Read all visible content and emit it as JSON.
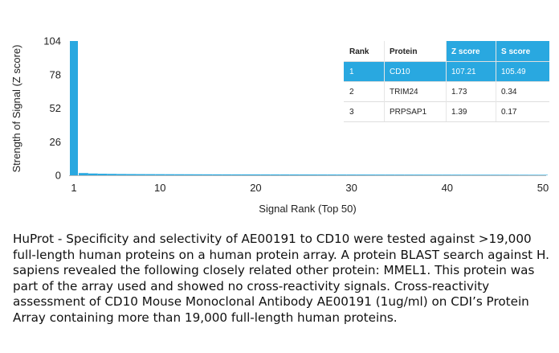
{
  "chart_data": {
    "type": "bar",
    "ylabel": "Strength of Signal (Z score)",
    "xlabel": "Signal Rank (Top 50)",
    "x_ticks": [
      "1",
      "10",
      "20",
      "30",
      "40",
      "50"
    ],
    "y_ticks": [
      "0",
      "26",
      "52",
      "78",
      "104"
    ],
    "ylim": [
      0,
      104
    ],
    "xlim": [
      1,
      50
    ],
    "bar_color": "#29a8e0",
    "highlight_color": "#29a8e0",
    "categories": [
      1,
      2,
      3,
      4,
      5,
      6,
      7,
      8,
      9,
      10,
      11,
      12,
      13,
      14,
      15,
      16,
      17,
      18,
      19,
      20,
      21,
      22,
      23,
      24,
      25,
      26,
      27,
      28,
      29,
      30,
      31,
      32,
      33,
      34,
      35,
      36,
      37,
      38,
      39,
      40,
      41,
      42,
      43,
      44,
      45,
      46,
      47,
      48,
      49,
      50
    ],
    "values": [
      107.21,
      1.73,
      1.39,
      1.2,
      1.1,
      1.0,
      0.95,
      0.9,
      0.88,
      0.85,
      0.82,
      0.8,
      0.78,
      0.76,
      0.74,
      0.72,
      0.7,
      0.69,
      0.68,
      0.67,
      0.66,
      0.65,
      0.64,
      0.63,
      0.62,
      0.61,
      0.6,
      0.59,
      0.58,
      0.57,
      0.56,
      0.55,
      0.54,
      0.53,
      0.52,
      0.51,
      0.5,
      0.49,
      0.48,
      0.47,
      0.46,
      0.45,
      0.44,
      0.43,
      0.42,
      0.41,
      0.4,
      0.39,
      0.38,
      0.37
    ],
    "table": {
      "headers": [
        "Rank",
        "Protein",
        "Z score",
        "S score"
      ],
      "rows": [
        [
          "1",
          "CD10",
          "107.21",
          "105.49"
        ],
        [
          "2",
          "TRIM24",
          "1.73",
          "0.34"
        ],
        [
          "3",
          "PRPSAP1",
          "1.39",
          "0.17"
        ]
      ],
      "highlighted_row": 0,
      "highlighted_columns": [
        2,
        3
      ]
    }
  },
  "caption": "HuProt  -  Specificity and selectivity of AE00191 to CD10 were tested against >19,000 full-length human proteins on a human protein array. A protein BLAST search against H. sapiens revealed the following closely related other protein: MMEL1. This protein was part of the array used and showed no cross-reactivity signals. Cross-reactivity assessment of CD10 Mouse Monoclonal Antibody AE00191 (1ug/ml) on CDI’s Protein Array containing more than 19,000 full-length human proteins."
}
